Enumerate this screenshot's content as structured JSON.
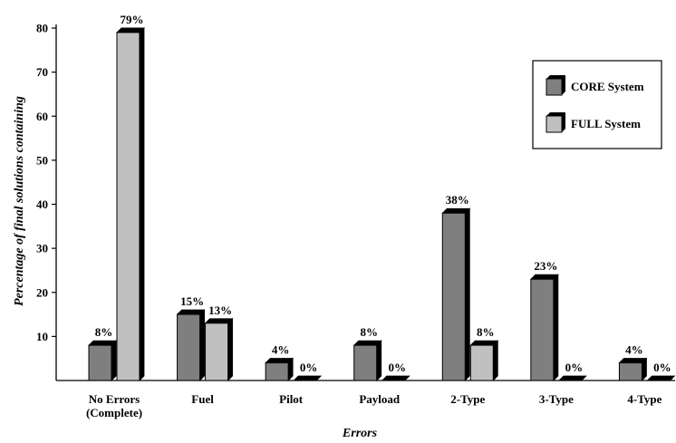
{
  "chart_data": {
    "type": "bar",
    "title": "",
    "xlabel": "Errors",
    "ylabel": "Percentage of final solutions containing",
    "ylim": [
      0,
      80
    ],
    "yticks": [
      10,
      20,
      30,
      40,
      50,
      60,
      70,
      80
    ],
    "grid": false,
    "legend_position": "top-right",
    "categories": [
      [
        "No Errors",
        "(Complete)"
      ],
      [
        "Fuel"
      ],
      [
        "Pilot"
      ],
      [
        "Payload"
      ],
      [
        "2-Type"
      ],
      [
        "3-Type"
      ],
      [
        "4-Type"
      ]
    ],
    "series": [
      {
        "name": "CORE System",
        "color": "#7f7f7f",
        "values": [
          8,
          15,
          4,
          8,
          38,
          23,
          4
        ],
        "labels": [
          "8%",
          "15%",
          "4%",
          "8%",
          "38%",
          "23%",
          "4%"
        ]
      },
      {
        "name": "FULL System",
        "color": "#c0c0c0",
        "values": [
          79,
          13,
          0,
          0,
          8,
          0,
          0
        ],
        "labels": [
          "79%",
          "13%",
          "0%",
          "0%",
          "8%",
          "0%",
          "0%"
        ]
      }
    ]
  }
}
